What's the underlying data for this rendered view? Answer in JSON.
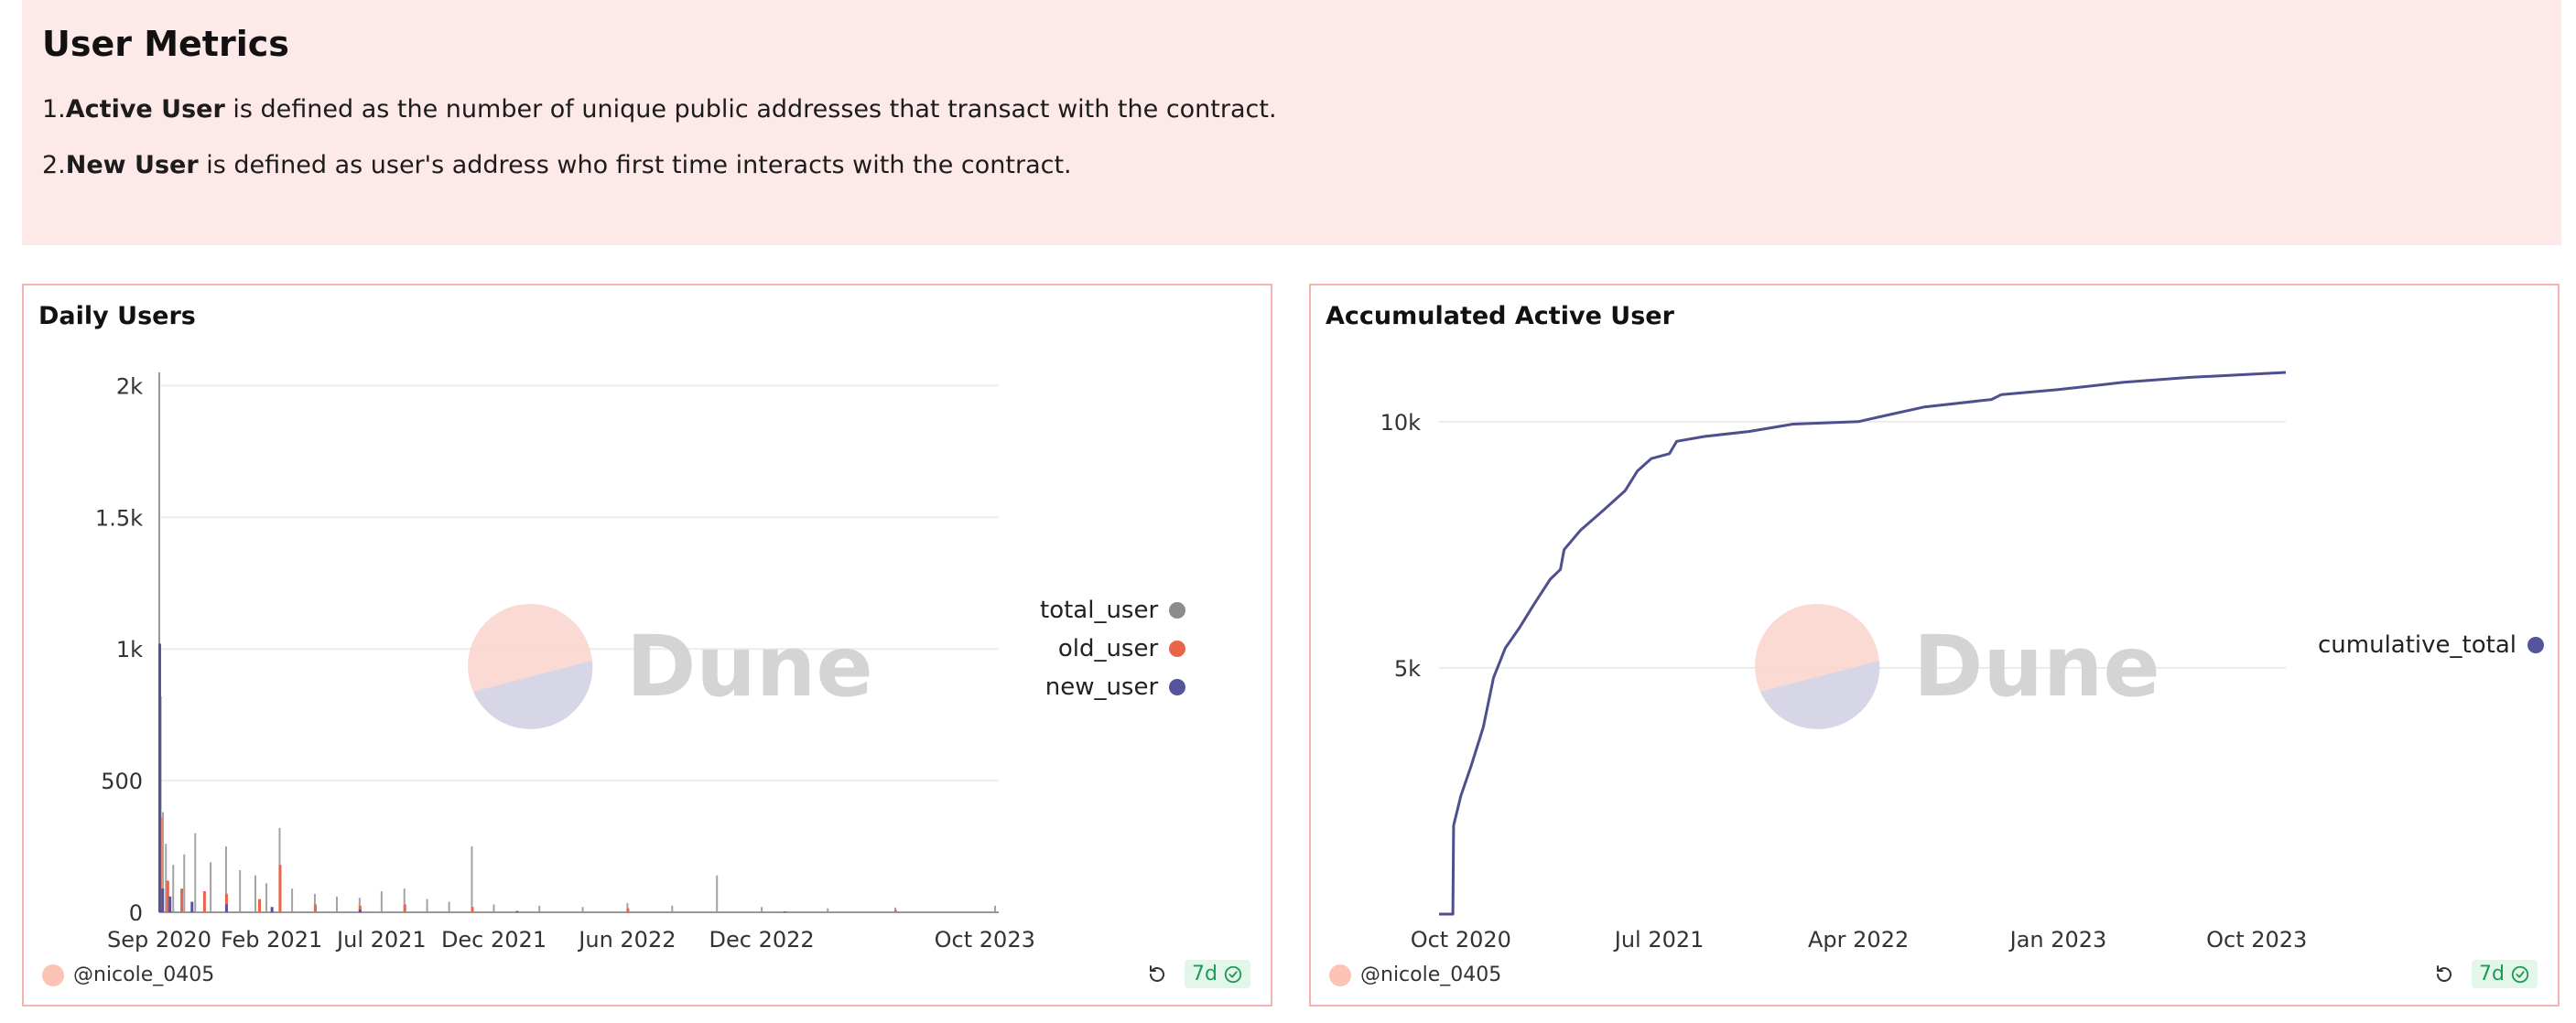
{
  "header": {
    "title": "User Metrics",
    "definitions": [
      {
        "prefix": "1.",
        "term": "Active User",
        "text": " is defined as the number of unique public addresses that transact with the contract."
      },
      {
        "prefix": "2.",
        "term": "New User",
        "text": " is defined as user's address who first time interacts with the contract."
      }
    ]
  },
  "watermark": "Dune",
  "cards": {
    "daily": {
      "title": "Daily Users",
      "author": "@nicole_0405",
      "badge": "7d"
    },
    "accumulated": {
      "title": "Accumulated Active User",
      "author": "@nicole_0405",
      "badge": "7d"
    }
  },
  "colors": {
    "total_user": "#8c8c8c",
    "old_user": "#e8654a",
    "new_user": "#54559a",
    "cumulative_total": "#4e4f8e",
    "card_border": "#f5b4ad",
    "header_bg": "#fee9e9"
  },
  "chart_data": [
    {
      "type": "bar",
      "title": "Daily Users",
      "xlabel": "",
      "ylabel": "",
      "x_ticks": [
        "Sep 2020",
        "Feb 2021",
        "Jul 2021",
        "Dec 2021",
        "Jun 2022",
        "Dec 2022",
        "Oct 2023"
      ],
      "y_ticks": [
        "0",
        "500",
        "1k",
        "1.5k",
        "2k"
      ],
      "ylim": [
        0,
        2050
      ],
      "x_range": [
        "2020-09-01",
        "2023-10-20"
      ],
      "grid": true,
      "legend_position": "right",
      "series": [
        {
          "name": "total_user",
          "points": [
            [
              "2020-09-01",
              2050
            ],
            [
              "2020-09-03",
              820
            ],
            [
              "2020-09-06",
              380
            ],
            [
              "2020-09-10",
              260
            ],
            [
              "2020-09-20",
              180
            ],
            [
              "2020-10-05",
              220
            ],
            [
              "2020-10-20",
              300
            ],
            [
              "2020-11-10",
              190
            ],
            [
              "2020-12-01",
              250
            ],
            [
              "2020-12-20",
              160
            ],
            [
              "2021-01-10",
              140
            ],
            [
              "2021-01-25",
              110
            ],
            [
              "2021-02-12",
              320
            ],
            [
              "2021-03-01",
              90
            ],
            [
              "2021-04-01",
              70
            ],
            [
              "2021-05-01",
              60
            ],
            [
              "2021-06-01",
              55
            ],
            [
              "2021-07-01",
              80
            ],
            [
              "2021-08-01",
              90
            ],
            [
              "2021-09-01",
              50
            ],
            [
              "2021-10-01",
              40
            ],
            [
              "2021-11-01",
              250
            ],
            [
              "2021-12-01",
              30
            ],
            [
              "2022-02-01",
              25
            ],
            [
              "2022-04-01",
              20
            ],
            [
              "2022-06-01",
              35
            ],
            [
              "2022-08-01",
              25
            ],
            [
              "2022-10-01",
              140
            ],
            [
              "2022-12-01",
              20
            ],
            [
              "2023-03-01",
              15
            ],
            [
              "2023-06-01",
              18
            ],
            [
              "2023-10-15",
              25
            ]
          ]
        },
        {
          "name": "old_user",
          "points": [
            [
              "2020-09-02",
              360
            ],
            [
              "2020-09-12",
              120
            ],
            [
              "2020-10-01",
              90
            ],
            [
              "2020-11-01",
              80
            ],
            [
              "2020-12-01",
              70
            ],
            [
              "2021-01-15",
              50
            ],
            [
              "2021-02-12",
              180
            ],
            [
              "2021-04-01",
              30
            ],
            [
              "2021-06-01",
              25
            ],
            [
              "2021-08-01",
              30
            ],
            [
              "2021-11-01",
              20
            ],
            [
              "2022-06-01",
              15
            ],
            [
              "2023-06-01",
              8
            ]
          ]
        },
        {
          "name": "new_user",
          "points": [
            [
              "2020-09-01",
              1020
            ],
            [
              "2020-09-05",
              90
            ],
            [
              "2020-09-15",
              60
            ],
            [
              "2020-10-15",
              40
            ],
            [
              "2020-12-01",
              30
            ],
            [
              "2021-02-01",
              20
            ],
            [
              "2021-06-01",
              10
            ],
            [
              "2022-01-01",
              5
            ],
            [
              "2023-01-01",
              3
            ]
          ]
        }
      ]
    },
    {
      "type": "line",
      "title": "Accumulated Active User",
      "xlabel": "",
      "ylabel": "",
      "x_ticks": [
        "Oct 2020",
        "Jul 2021",
        "Apr 2022",
        "Jan 2023",
        "Oct 2023"
      ],
      "y_ticks": [
        "5k",
        "10k"
      ],
      "ylim": [
        0,
        11000
      ],
      "x_range": [
        "2020-09-01",
        "2023-11-10"
      ],
      "grid": true,
      "legend_position": "right",
      "series": [
        {
          "name": "cumulative_total",
          "points": [
            [
              "2020-09-01",
              0
            ],
            [
              "2020-09-20",
              0
            ],
            [
              "2020-09-21",
              1800
            ],
            [
              "2020-10-01",
              2400
            ],
            [
              "2020-10-15",
              3000
            ],
            [
              "2020-11-01",
              3800
            ],
            [
              "2020-11-15",
              4800
            ],
            [
              "2020-12-01",
              5400
            ],
            [
              "2020-12-20",
              5800
            ],
            [
              "2021-01-10",
              6300
            ],
            [
              "2021-02-01",
              6800
            ],
            [
              "2021-02-15",
              7000
            ],
            [
              "2021-02-20",
              7400
            ],
            [
              "2021-03-15",
              7800
            ],
            [
              "2021-04-15",
              8200
            ],
            [
              "2021-05-15",
              8600
            ],
            [
              "2021-06-01",
              9000
            ],
            [
              "2021-06-20",
              9250
            ],
            [
              "2021-07-15",
              9350
            ],
            [
              "2021-07-25",
              9600
            ],
            [
              "2021-09-01",
              9700
            ],
            [
              "2021-11-01",
              9800
            ],
            [
              "2022-01-01",
              9950
            ],
            [
              "2022-04-01",
              10000
            ],
            [
              "2022-05-01",
              10100
            ],
            [
              "2022-07-01",
              10300
            ],
            [
              "2022-10-01",
              10450
            ],
            [
              "2022-10-15",
              10550
            ],
            [
              "2023-01-01",
              10650
            ],
            [
              "2023-04-01",
              10800
            ],
            [
              "2023-07-01",
              10900
            ],
            [
              "2023-11-10",
              11000
            ]
          ]
        }
      ]
    }
  ]
}
